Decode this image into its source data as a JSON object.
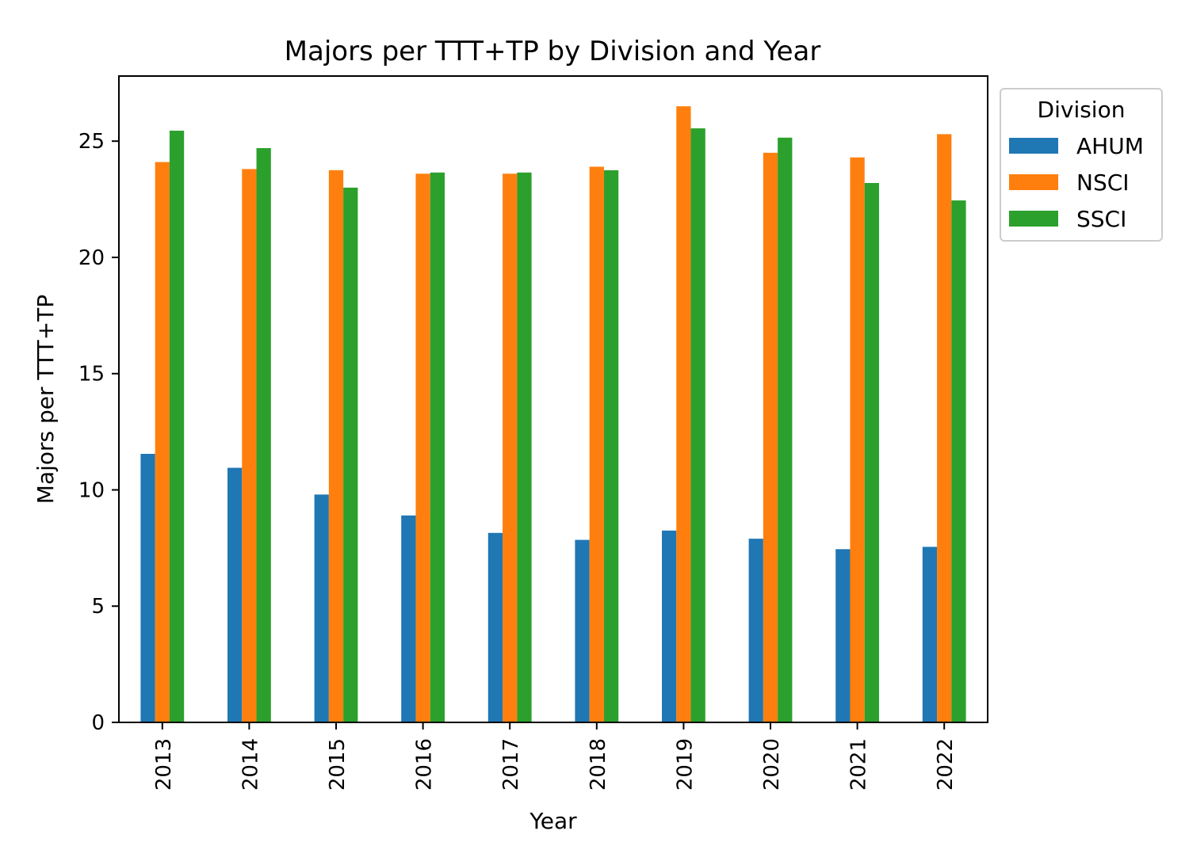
{
  "chart_data": {
    "type": "bar",
    "title": "Majors per TTT+TP by Division and Year",
    "xlabel": "Year",
    "ylabel": "Majors per TTT+TP",
    "categories": [
      "2013",
      "2014",
      "2015",
      "2016",
      "2017",
      "2018",
      "2019",
      "2020",
      "2021",
      "2022"
    ],
    "series": [
      {
        "name": "AHUM",
        "color": "#1f77b4",
        "values": [
          11.55,
          10.95,
          9.8,
          8.9,
          8.15,
          7.85,
          8.25,
          7.9,
          7.45,
          7.55
        ]
      },
      {
        "name": "NSCI",
        "color": "#ff7f0e",
        "values": [
          24.1,
          23.8,
          23.75,
          23.6,
          23.6,
          23.9,
          26.5,
          24.5,
          24.3,
          25.3
        ]
      },
      {
        "name": "SSCI",
        "color": "#2ca02c",
        "values": [
          25.45,
          24.7,
          23.0,
          23.65,
          23.65,
          23.75,
          25.55,
          25.15,
          23.2,
          22.45
        ]
      }
    ],
    "ylim": [
      0,
      27.8
    ],
    "yticks": [
      0,
      5,
      10,
      15,
      20,
      25
    ],
    "grid": false,
    "legend": {
      "title": "Division",
      "placement": "outside-top-right"
    }
  }
}
